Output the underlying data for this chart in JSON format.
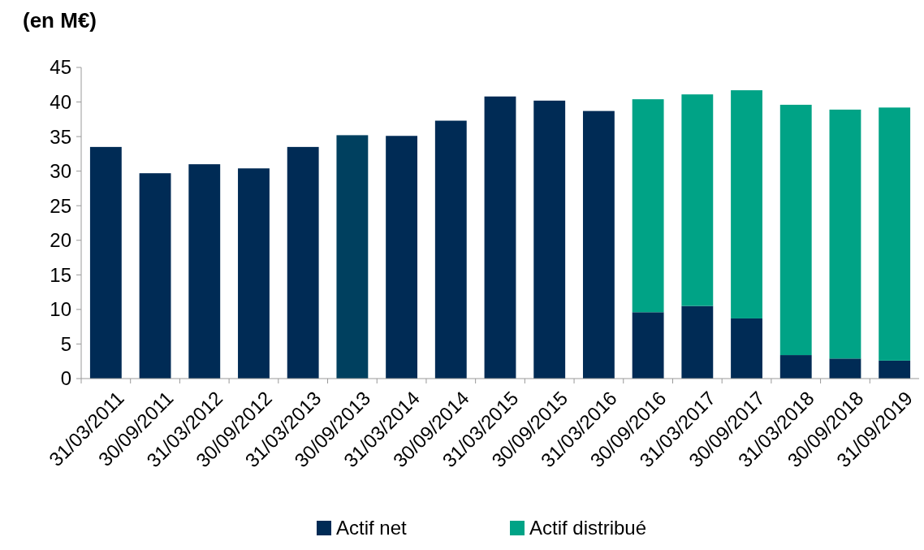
{
  "chart_data": {
    "type": "bar",
    "title": "(en M€)",
    "stacked": true,
    "categories": [
      "31/03/2011",
      "30/09/2011",
      "31/03/2012",
      "30/09/2012",
      "31/03/2013",
      "30/09/2013",
      "31/03/2014",
      "30/09/2014",
      "31/03/2015",
      "30/09/2015",
      "31/03/2016",
      "30/09/2016",
      "31/03/2017",
      "30/09/2017",
      "31/03/2018",
      "30/09/2018",
      "31/09/2019"
    ],
    "series": [
      {
        "name": "Actif net",
        "color": "#002b55",
        "colors": [
          "#002b55",
          "#002b55",
          "#002b55",
          "#002b55",
          "#002b55",
          "#00405f",
          "#002b55",
          "#002b55",
          "#002b55",
          "#002b55",
          "#002b55",
          "#002b55",
          "#002b55",
          "#002b55",
          "#002b55",
          "#002b55",
          "#002b55"
        ],
        "values": [
          33.5,
          29.7,
          31.0,
          30.4,
          33.5,
          35.2,
          35.1,
          37.3,
          40.8,
          40.2,
          38.7,
          9.6,
          10.5,
          8.7,
          3.4,
          2.9,
          2.6
        ]
      },
      {
        "name": "Actif distribué",
        "color": "#00a386",
        "values": [
          null,
          null,
          null,
          null,
          null,
          null,
          null,
          null,
          null,
          null,
          null,
          30.8,
          30.6,
          33.0,
          36.2,
          36.0,
          36.6
        ]
      }
    ],
    "ylim": [
      0,
      45
    ],
    "yticks": [
      0,
      5,
      10,
      15,
      20,
      25,
      30,
      35,
      40,
      45
    ],
    "grid": false,
    "legend": "bottom"
  }
}
